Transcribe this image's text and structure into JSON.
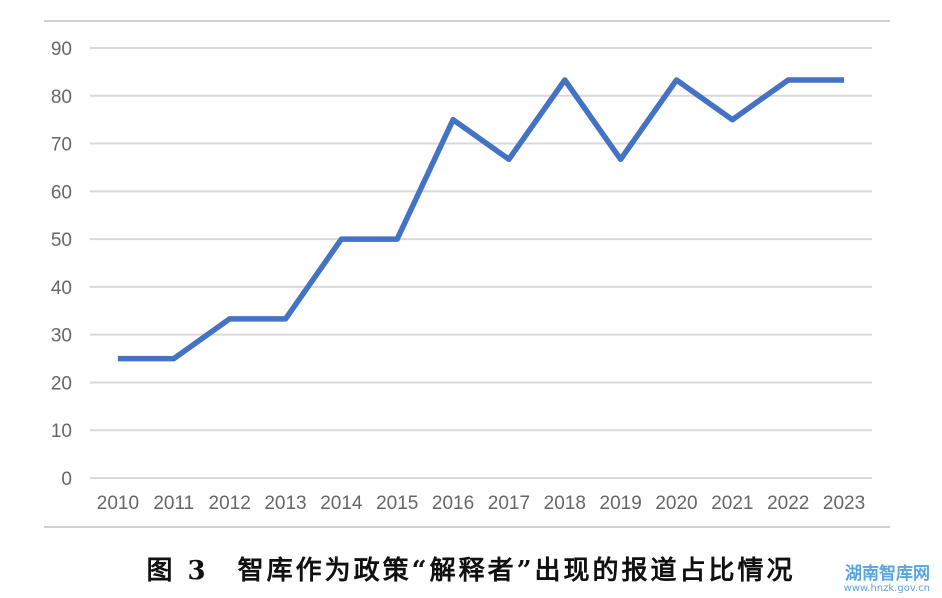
{
  "chart_data": {
    "type": "line",
    "title": "",
    "xlabel": "",
    "ylabel": "",
    "x": [
      "2010",
      "2011",
      "2012",
      "2013",
      "2014",
      "2015",
      "2016",
      "2017",
      "2018",
      "2019",
      "2020",
      "2021",
      "2022",
      "2023"
    ],
    "series": [
      {
        "values": [
          25,
          25,
          33.3,
          33.3,
          50,
          50,
          75,
          66.7,
          83.3,
          66.7,
          83.3,
          75,
          83.3,
          83.3
        ]
      }
    ],
    "ylim": [
      0,
      90
    ],
    "yticks": [
      "0",
      "10",
      "20",
      "30",
      "40",
      "50",
      "60",
      "70",
      "80",
      "90"
    ],
    "grid": true,
    "legend": "none",
    "line_color": "#4472c4"
  },
  "caption": "图 3　智库作为政策“解释者”出现的报道占比情况",
  "watermark": {
    "name": "湖南智库网",
    "url": "www.hnzk.gov.cn",
    "color": "#5aa5df"
  }
}
